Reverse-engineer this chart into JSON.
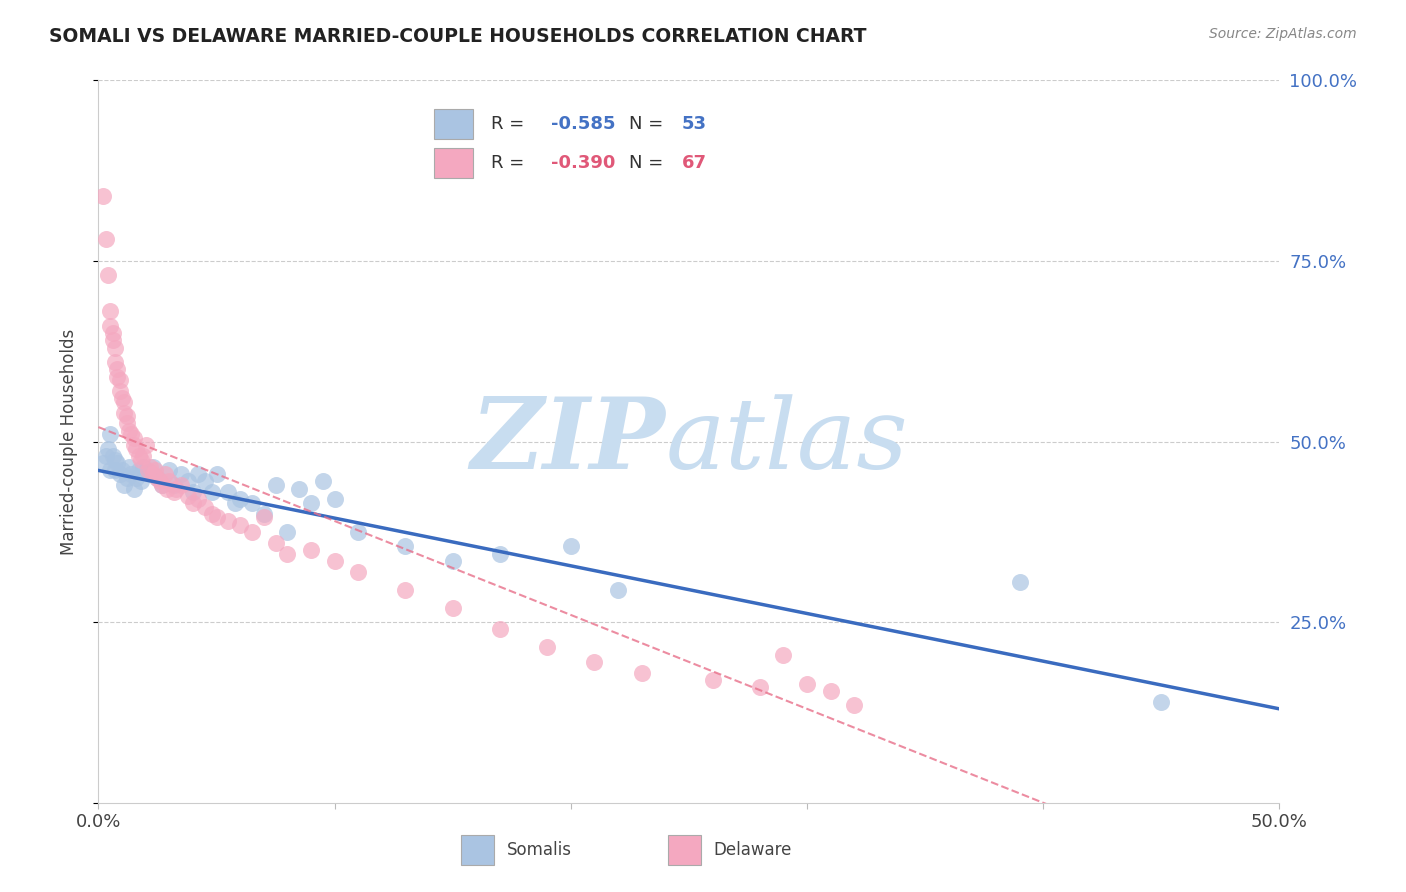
{
  "title": "SOMALI VS DELAWARE MARRIED-COUPLE HOUSEHOLDS CORRELATION CHART",
  "source": "Source: ZipAtlas.com",
  "ylabel": "Married-couple Households",
  "xlim": [
    0.0,
    0.5
  ],
  "ylim": [
    0.0,
    1.0
  ],
  "somali_R": -0.585,
  "somali_N": 53,
  "delaware_R": -0.39,
  "delaware_N": 67,
  "somali_color": "#aac4e2",
  "delaware_color": "#f4a8c0",
  "somali_line_color": "#3a6bbf",
  "delaware_line_color": "#e8708a",
  "watermark_zip": "ZIP",
  "watermark_atlas": "atlas",
  "watermark_color": "#c8ddf0",
  "somali_x": [
    0.002,
    0.003,
    0.004,
    0.005,
    0.005,
    0.006,
    0.007,
    0.007,
    0.008,
    0.009,
    0.01,
    0.011,
    0.012,
    0.013,
    0.014,
    0.015,
    0.016,
    0.017,
    0.018,
    0.019,
    0.02,
    0.022,
    0.023,
    0.025,
    0.027,
    0.03,
    0.032,
    0.035,
    0.038,
    0.04,
    0.042,
    0.045,
    0.048,
    0.05,
    0.055,
    0.058,
    0.06,
    0.065,
    0.07,
    0.075,
    0.08,
    0.085,
    0.09,
    0.095,
    0.1,
    0.11,
    0.13,
    0.15,
    0.17,
    0.2,
    0.22,
    0.39,
    0.45
  ],
  "somali_y": [
    0.47,
    0.48,
    0.49,
    0.46,
    0.51,
    0.48,
    0.475,
    0.46,
    0.47,
    0.455,
    0.46,
    0.44,
    0.45,
    0.465,
    0.455,
    0.435,
    0.45,
    0.46,
    0.445,
    0.465,
    0.46,
    0.455,
    0.465,
    0.45,
    0.44,
    0.46,
    0.44,
    0.455,
    0.445,
    0.43,
    0.455,
    0.445,
    0.43,
    0.455,
    0.43,
    0.415,
    0.42,
    0.415,
    0.4,
    0.44,
    0.375,
    0.435,
    0.415,
    0.445,
    0.42,
    0.375,
    0.355,
    0.335,
    0.345,
    0.355,
    0.295,
    0.305,
    0.14
  ],
  "delaware_x": [
    0.002,
    0.003,
    0.004,
    0.005,
    0.005,
    0.006,
    0.006,
    0.007,
    0.007,
    0.008,
    0.008,
    0.009,
    0.009,
    0.01,
    0.011,
    0.011,
    0.012,
    0.012,
    0.013,
    0.014,
    0.015,
    0.015,
    0.016,
    0.017,
    0.018,
    0.019,
    0.02,
    0.021,
    0.022,
    0.023,
    0.024,
    0.025,
    0.026,
    0.027,
    0.028,
    0.029,
    0.03,
    0.032,
    0.033,
    0.035,
    0.038,
    0.04,
    0.042,
    0.045,
    0.048,
    0.05,
    0.055,
    0.06,
    0.065,
    0.07,
    0.075,
    0.08,
    0.09,
    0.1,
    0.11,
    0.13,
    0.15,
    0.17,
    0.19,
    0.21,
    0.23,
    0.26,
    0.28,
    0.29,
    0.3,
    0.31,
    0.32
  ],
  "delaware_y": [
    0.84,
    0.78,
    0.73,
    0.68,
    0.66,
    0.65,
    0.64,
    0.63,
    0.61,
    0.6,
    0.59,
    0.585,
    0.57,
    0.56,
    0.555,
    0.54,
    0.535,
    0.525,
    0.515,
    0.51,
    0.505,
    0.495,
    0.49,
    0.48,
    0.475,
    0.48,
    0.495,
    0.46,
    0.465,
    0.455,
    0.46,
    0.45,
    0.445,
    0.44,
    0.455,
    0.435,
    0.445,
    0.43,
    0.435,
    0.44,
    0.425,
    0.415,
    0.42,
    0.41,
    0.4,
    0.395,
    0.39,
    0.385,
    0.375,
    0.395,
    0.36,
    0.345,
    0.35,
    0.335,
    0.32,
    0.295,
    0.27,
    0.24,
    0.215,
    0.195,
    0.18,
    0.17,
    0.16,
    0.205,
    0.165,
    0.155,
    0.135
  ]
}
